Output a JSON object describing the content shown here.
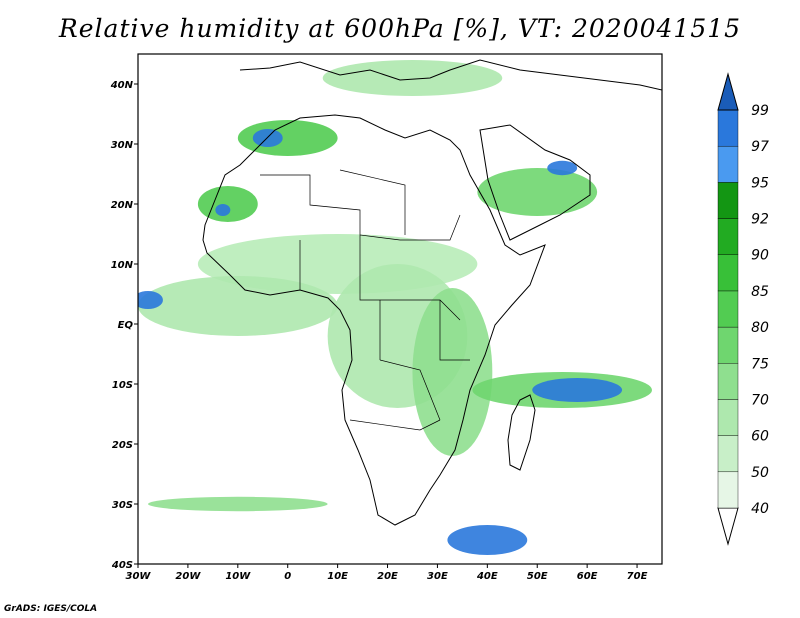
{
  "title": "Relative humidity at 600hPa [%], VT: 2020041515",
  "credit": "GrADS: IGES/COLA",
  "map": {
    "lon_range": [
      -30,
      75
    ],
    "lat_range": [
      -40,
      45
    ],
    "x_ticks": [
      {
        "lon": -30,
        "label": "30W"
      },
      {
        "lon": -20,
        "label": "20W"
      },
      {
        "lon": -10,
        "label": "10W"
      },
      {
        "lon": 0,
        "label": "0"
      },
      {
        "lon": 10,
        "label": "10E"
      },
      {
        "lon": 20,
        "label": "20E"
      },
      {
        "lon": 30,
        "label": "30E"
      },
      {
        "lon": 40,
        "label": "40E"
      },
      {
        "lon": 50,
        "label": "50E"
      },
      {
        "lon": 60,
        "label": "60E"
      },
      {
        "lon": 70,
        "label": "70E"
      }
    ],
    "y_ticks": [
      {
        "lat": 40,
        "label": "40N"
      },
      {
        "lat": 30,
        "label": "30N"
      },
      {
        "lat": 20,
        "label": "20N"
      },
      {
        "lat": 10,
        "label": "10N"
      },
      {
        "lat": 0,
        "label": "EQ"
      },
      {
        "lat": -10,
        "label": "10S"
      },
      {
        "lat": -20,
        "label": "20S"
      },
      {
        "lat": -30,
        "label": "30S"
      },
      {
        "lat": -40,
        "label": "40S"
      }
    ]
  },
  "colorbar": {
    "levels": [
      "40",
      "50",
      "60",
      "70",
      "75",
      "80",
      "85",
      "90",
      "92",
      "95",
      "97",
      "99"
    ],
    "colors": [
      "#e6f6e6",
      "#c8efc8",
      "#aee8ae",
      "#8fdf8f",
      "#6fd66f",
      "#52cc52",
      "#38c038",
      "#22ab22",
      "#139613",
      "#4a9af0",
      "#2a78dc",
      "#1a5cb8"
    ],
    "under_color": "#ffffff",
    "over_color": "#1a5cb8"
  },
  "fields": [
    {
      "label": "sahel-band",
      "lon": 10,
      "lat": 10,
      "rx": 28,
      "ry": 5,
      "color": "#b8ecb8"
    },
    {
      "label": "central-africa",
      "lon": 22,
      "lat": -2,
      "rx": 14,
      "ry": 12,
      "color": "#aee8ae"
    },
    {
      "label": "east-africa",
      "lon": 33,
      "lat": -8,
      "rx": 8,
      "ry": 14,
      "color": "#8fdf8f"
    },
    {
      "label": "gulf-guinea",
      "lon": -10,
      "lat": 3,
      "rx": 20,
      "ry": 5,
      "color": "#aee8ae"
    },
    {
      "label": "atlas",
      "lon": 0,
      "lat": 31,
      "rx": 10,
      "ry": 3,
      "color": "#52cc52"
    },
    {
      "label": "atlas-core",
      "lon": -4,
      "lat": 31,
      "rx": 3,
      "ry": 1.5,
      "color": "#2a78dc"
    },
    {
      "label": "arabia-band",
      "lon": 50,
      "lat": 22,
      "rx": 12,
      "ry": 4,
      "color": "#6fd66f"
    },
    {
      "label": "persian-gulf",
      "lon": 55,
      "lat": 26,
      "rx": 3,
      "ry": 1.2,
      "color": "#2a78dc"
    },
    {
      "label": "indian-ocean-band",
      "lon": 55,
      "lat": -11,
      "rx": 18,
      "ry": 3,
      "color": "#6fd66f"
    },
    {
      "label": "indian-ocean-core",
      "lon": 58,
      "lat": -11,
      "rx": 9,
      "ry": 2,
      "color": "#2a78dc"
    },
    {
      "label": "south-africa-front",
      "lon": 40,
      "lat": -36,
      "rx": 8,
      "ry": 2.5,
      "color": "#2a78dc"
    },
    {
      "label": "south-atlantic-front",
      "lon": -10,
      "lat": -30,
      "rx": 18,
      "ry": 1.2,
      "color": "#8fdf8f"
    },
    {
      "label": "mediterranean",
      "lon": 25,
      "lat": 41,
      "rx": 18,
      "ry": 3,
      "color": "#aee8ae"
    },
    {
      "label": "west-sahara",
      "lon": -12,
      "lat": 20,
      "rx": 6,
      "ry": 3,
      "color": "#52cc52"
    },
    {
      "label": "west-sahara-core",
      "lon": -13,
      "lat": 19,
      "rx": 1.5,
      "ry": 1,
      "color": "#2a78dc"
    },
    {
      "label": "atlantic-equator",
      "lon": -28,
      "lat": 4,
      "rx": 3,
      "ry": 1.5,
      "color": "#2a78dc"
    }
  ]
}
